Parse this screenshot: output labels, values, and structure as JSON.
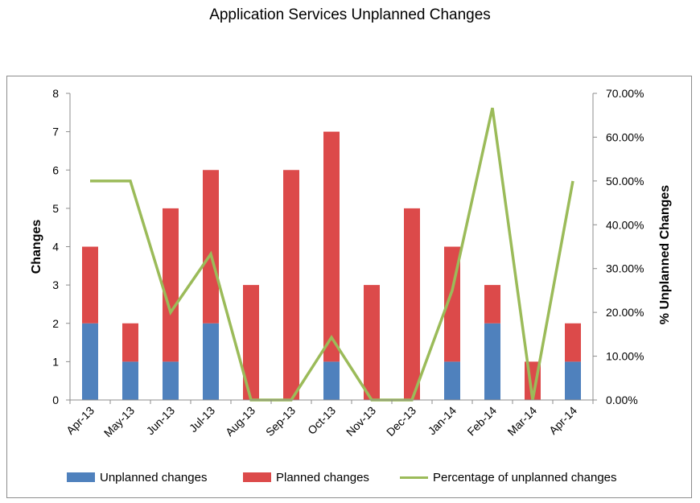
{
  "title": "Application Services Unplanned Changes",
  "colors": {
    "unplanned": "#4f81bd",
    "planned": "#dc4a4a",
    "percentage": "#9bbb59",
    "axis": "#8c8c8c"
  },
  "chart_data": {
    "type": "bar",
    "stacked": true,
    "title": "Application Services Unplanned Changes",
    "categories": [
      "Apr-13",
      "May-13",
      "Jun-13",
      "Jul-13",
      "Aug-13",
      "Sep-13",
      "Oct-13",
      "Nov-13",
      "Dec-13",
      "Jan-14",
      "Feb-14",
      "Mar-14",
      "Apr-14"
    ],
    "ylabel": "Changes",
    "ylim": [
      0,
      8
    ],
    "yticks": [
      "0",
      "1",
      "2",
      "3",
      "4",
      "5",
      "6",
      "7",
      "8"
    ],
    "y2label": "% Unplanned Changes",
    "y2lim": [
      0,
      70
    ],
    "y2ticks": [
      "0.00%",
      "10.00%",
      "20.00%",
      "30.00%",
      "40.00%",
      "50.00%",
      "60.00%",
      "70.00%"
    ],
    "grid": false,
    "legend_position": "bottom",
    "series": [
      {
        "name": "Unplanned changes",
        "type": "bar",
        "axis": "left",
        "values": [
          2,
          1,
          1,
          2,
          0,
          0,
          1,
          0,
          0,
          1,
          2,
          0,
          1
        ]
      },
      {
        "name": "Planned changes",
        "type": "bar",
        "axis": "left",
        "values": [
          2,
          1,
          4,
          4,
          3,
          6,
          6,
          3,
          5,
          3,
          1,
          1,
          1
        ]
      },
      {
        "name": "Percentage of unplanned changes",
        "type": "line",
        "axis": "right",
        "values": [
          50,
          50,
          20,
          33.33,
          0,
          0,
          14.29,
          0,
          0,
          25,
          66.67,
          0,
          50
        ]
      }
    ]
  }
}
